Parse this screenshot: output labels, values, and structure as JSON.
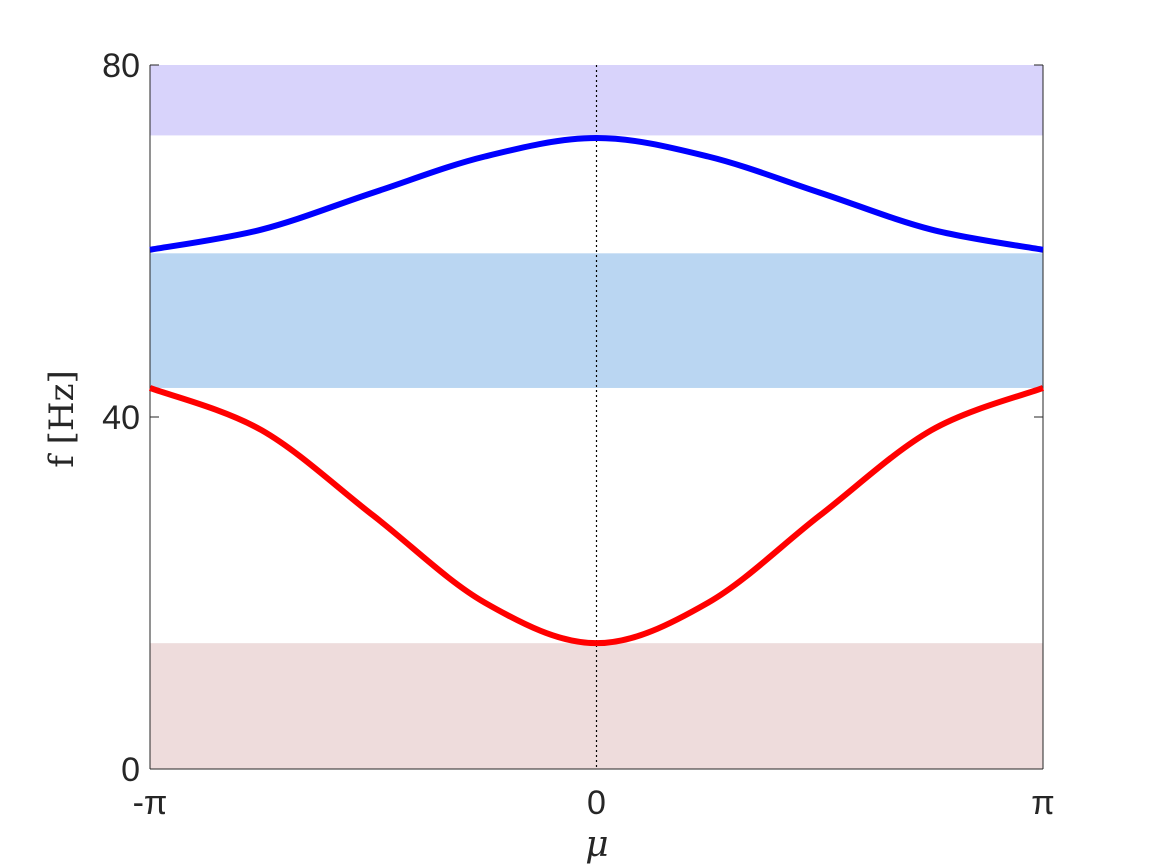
{
  "chart_data": {
    "type": "line",
    "xlabel": "μ",
    "ylabel": "f [Hz]",
    "xlim": [
      -3.14159,
      3.14159
    ],
    "ylim": [
      0,
      80
    ],
    "x_ticks": [
      {
        "value": -3.14159,
        "label": "-π"
      },
      {
        "value": 0,
        "label": "0"
      },
      {
        "value": 3.14159,
        "label": "π"
      }
    ],
    "y_ticks": [
      {
        "value": 0,
        "label": "0"
      },
      {
        "value": 40,
        "label": "40"
      },
      {
        "value": 80,
        "label": "80"
      }
    ],
    "reference_line": {
      "x": 0,
      "style": "dotted",
      "color": "#000000"
    },
    "bands": [
      {
        "y0": 0,
        "y1": 14.3,
        "color": "#eedcdc"
      },
      {
        "y0": 43.3,
        "y1": 58.6,
        "color": "#bad6f2"
      },
      {
        "y0": 72.0,
        "y1": 80,
        "color": "#d8d3fb"
      }
    ],
    "series": [
      {
        "color": "#ff0000",
        "x": [
          -3.14159,
          -2.35619,
          -1.5708,
          -0.7854,
          0,
          0.7854,
          1.5708,
          2.35619,
          3.14159
        ],
        "values": [
          43.3,
          38.5,
          28.8,
          18.9,
          14.3,
          18.9,
          28.8,
          38.5,
          43.3
        ]
      },
      {
        "color": "#0000ff",
        "x": [
          -3.14159,
          -2.35619,
          -1.5708,
          -0.7854,
          0,
          0.7854,
          1.5708,
          2.35619,
          3.14159
        ],
        "values": [
          59.0,
          61.3,
          65.5,
          69.6,
          71.7,
          69.6,
          65.5,
          61.3,
          59.0
        ]
      }
    ]
  }
}
